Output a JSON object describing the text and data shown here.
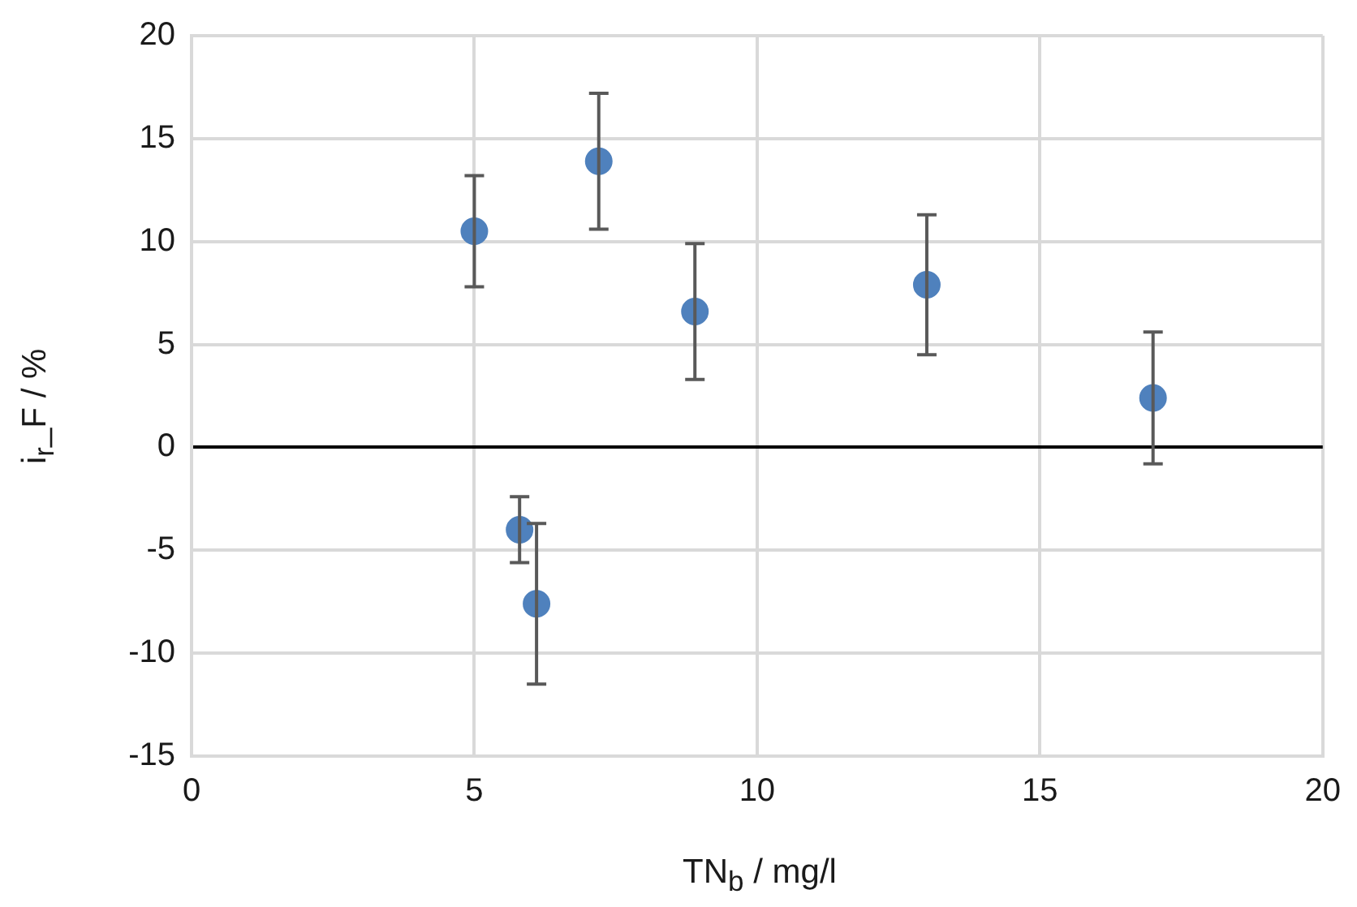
{
  "chart_data": {
    "type": "scatter",
    "xlabel": "TN$_{b}$ / mg/l",
    "ylabel": "i$_{r}$_F / %",
    "x": [
      5,
      7.2,
      8.9,
      13,
      17,
      5.8,
      6.1
    ],
    "series": [
      {
        "color": "#4f81bd",
        "values": [
          10.5,
          13.9,
          6.6,
          7.9,
          2.4,
          -4.0,
          -7.6
        ],
        "errors": [
          2.7,
          3.3,
          3.3,
          3.4,
          3.2,
          1.6,
          3.9
        ]
      }
    ],
    "xlim": [
      0,
      20
    ],
    "xticks": [
      0,
      5,
      10,
      15,
      20
    ],
    "ylim": [
      -15,
      20
    ],
    "yticks": [
      -15,
      -10,
      -5,
      0,
      5,
      10,
      15,
      20
    ],
    "grid": true,
    "legend": false,
    "marker": "circle"
  }
}
